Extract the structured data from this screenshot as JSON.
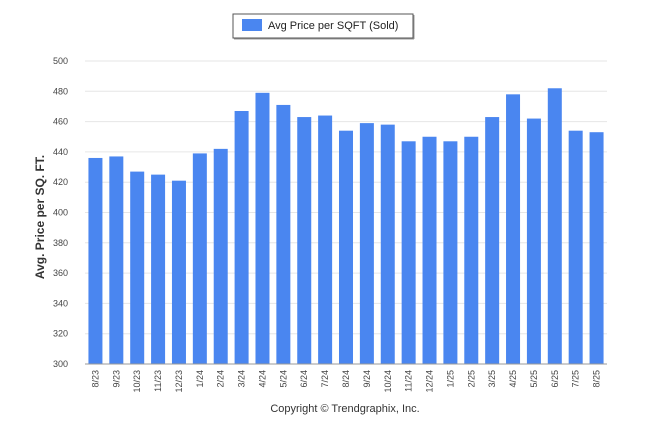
{
  "chart_data": {
    "type": "bar",
    "title": "",
    "xlabel": "",
    "ylabel": "Avg. Price per SQ. FT.",
    "ylim": [
      300,
      500
    ],
    "yticks": [
      300,
      320,
      340,
      360,
      380,
      400,
      420,
      440,
      460,
      480,
      500
    ],
    "grid": true,
    "legend_position": "top-center",
    "categories": [
      "8/23",
      "9/23",
      "10/23",
      "11/23",
      "12/23",
      "1/24",
      "2/24",
      "3/24",
      "4/24",
      "5/24",
      "6/24",
      "7/24",
      "8/24",
      "9/24",
      "10/24",
      "11/24",
      "12/24",
      "1/25",
      "2/25",
      "3/25",
      "4/25",
      "5/25",
      "6/25",
      "7/25",
      "8/25"
    ],
    "series": [
      {
        "name": "Avg Price per SQFT (Sold)",
        "color": "#4a86f0",
        "values": [
          436,
          437,
          427,
          425,
          421,
          439,
          442,
          467,
          479,
          471,
          463,
          464,
          454,
          459,
          458,
          447,
          450,
          447,
          450,
          463,
          478,
          462,
          482,
          454,
          453
        ]
      }
    ]
  },
  "footer": {
    "credit": "Copyright © Trendgraphix, Inc."
  }
}
